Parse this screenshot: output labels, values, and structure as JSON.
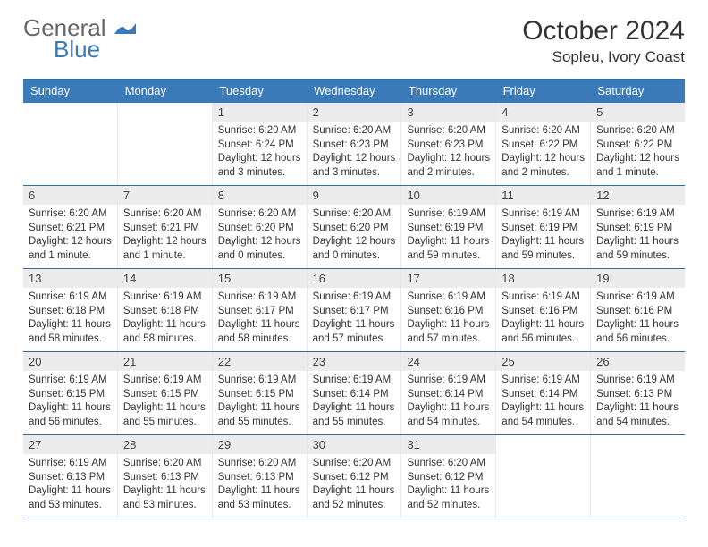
{
  "brand": {
    "part1": "General",
    "part2": "Blue"
  },
  "title": "October 2024",
  "location": "Sopleu, Ivory Coast",
  "colors": {
    "header_bg": "#3a7ab8",
    "border": "#2d6da8",
    "daynum_bg": "#ececec",
    "text": "#333333",
    "brand_gray": "#666666",
    "brand_blue": "#3a7ab8"
  },
  "day_names": [
    "Sunday",
    "Monday",
    "Tuesday",
    "Wednesday",
    "Thursday",
    "Friday",
    "Saturday"
  ],
  "weeks": [
    [
      null,
      null,
      {
        "n": "1",
        "sr": "6:20 AM",
        "ss": "6:24 PM",
        "dl": "12 hours and 3 minutes."
      },
      {
        "n": "2",
        "sr": "6:20 AM",
        "ss": "6:23 PM",
        "dl": "12 hours and 3 minutes."
      },
      {
        "n": "3",
        "sr": "6:20 AM",
        "ss": "6:23 PM",
        "dl": "12 hours and 2 minutes."
      },
      {
        "n": "4",
        "sr": "6:20 AM",
        "ss": "6:22 PM",
        "dl": "12 hours and 2 minutes."
      },
      {
        "n": "5",
        "sr": "6:20 AM",
        "ss": "6:22 PM",
        "dl": "12 hours and 1 minute."
      }
    ],
    [
      {
        "n": "6",
        "sr": "6:20 AM",
        "ss": "6:21 PM",
        "dl": "12 hours and 1 minute."
      },
      {
        "n": "7",
        "sr": "6:20 AM",
        "ss": "6:21 PM",
        "dl": "12 hours and 1 minute."
      },
      {
        "n": "8",
        "sr": "6:20 AM",
        "ss": "6:20 PM",
        "dl": "12 hours and 0 minutes."
      },
      {
        "n": "9",
        "sr": "6:20 AM",
        "ss": "6:20 PM",
        "dl": "12 hours and 0 minutes."
      },
      {
        "n": "10",
        "sr": "6:19 AM",
        "ss": "6:19 PM",
        "dl": "11 hours and 59 minutes."
      },
      {
        "n": "11",
        "sr": "6:19 AM",
        "ss": "6:19 PM",
        "dl": "11 hours and 59 minutes."
      },
      {
        "n": "12",
        "sr": "6:19 AM",
        "ss": "6:19 PM",
        "dl": "11 hours and 59 minutes."
      }
    ],
    [
      {
        "n": "13",
        "sr": "6:19 AM",
        "ss": "6:18 PM",
        "dl": "11 hours and 58 minutes."
      },
      {
        "n": "14",
        "sr": "6:19 AM",
        "ss": "6:18 PM",
        "dl": "11 hours and 58 minutes."
      },
      {
        "n": "15",
        "sr": "6:19 AM",
        "ss": "6:17 PM",
        "dl": "11 hours and 58 minutes."
      },
      {
        "n": "16",
        "sr": "6:19 AM",
        "ss": "6:17 PM",
        "dl": "11 hours and 57 minutes."
      },
      {
        "n": "17",
        "sr": "6:19 AM",
        "ss": "6:16 PM",
        "dl": "11 hours and 57 minutes."
      },
      {
        "n": "18",
        "sr": "6:19 AM",
        "ss": "6:16 PM",
        "dl": "11 hours and 56 minutes."
      },
      {
        "n": "19",
        "sr": "6:19 AM",
        "ss": "6:16 PM",
        "dl": "11 hours and 56 minutes."
      }
    ],
    [
      {
        "n": "20",
        "sr": "6:19 AM",
        "ss": "6:15 PM",
        "dl": "11 hours and 56 minutes."
      },
      {
        "n": "21",
        "sr": "6:19 AM",
        "ss": "6:15 PM",
        "dl": "11 hours and 55 minutes."
      },
      {
        "n": "22",
        "sr": "6:19 AM",
        "ss": "6:15 PM",
        "dl": "11 hours and 55 minutes."
      },
      {
        "n": "23",
        "sr": "6:19 AM",
        "ss": "6:14 PM",
        "dl": "11 hours and 55 minutes."
      },
      {
        "n": "24",
        "sr": "6:19 AM",
        "ss": "6:14 PM",
        "dl": "11 hours and 54 minutes."
      },
      {
        "n": "25",
        "sr": "6:19 AM",
        "ss": "6:14 PM",
        "dl": "11 hours and 54 minutes."
      },
      {
        "n": "26",
        "sr": "6:19 AM",
        "ss": "6:13 PM",
        "dl": "11 hours and 54 minutes."
      }
    ],
    [
      {
        "n": "27",
        "sr": "6:19 AM",
        "ss": "6:13 PM",
        "dl": "11 hours and 53 minutes."
      },
      {
        "n": "28",
        "sr": "6:20 AM",
        "ss": "6:13 PM",
        "dl": "11 hours and 53 minutes."
      },
      {
        "n": "29",
        "sr": "6:20 AM",
        "ss": "6:13 PM",
        "dl": "11 hours and 53 minutes."
      },
      {
        "n": "30",
        "sr": "6:20 AM",
        "ss": "6:12 PM",
        "dl": "11 hours and 52 minutes."
      },
      {
        "n": "31",
        "sr": "6:20 AM",
        "ss": "6:12 PM",
        "dl": "11 hours and 52 minutes."
      },
      null,
      null
    ]
  ]
}
